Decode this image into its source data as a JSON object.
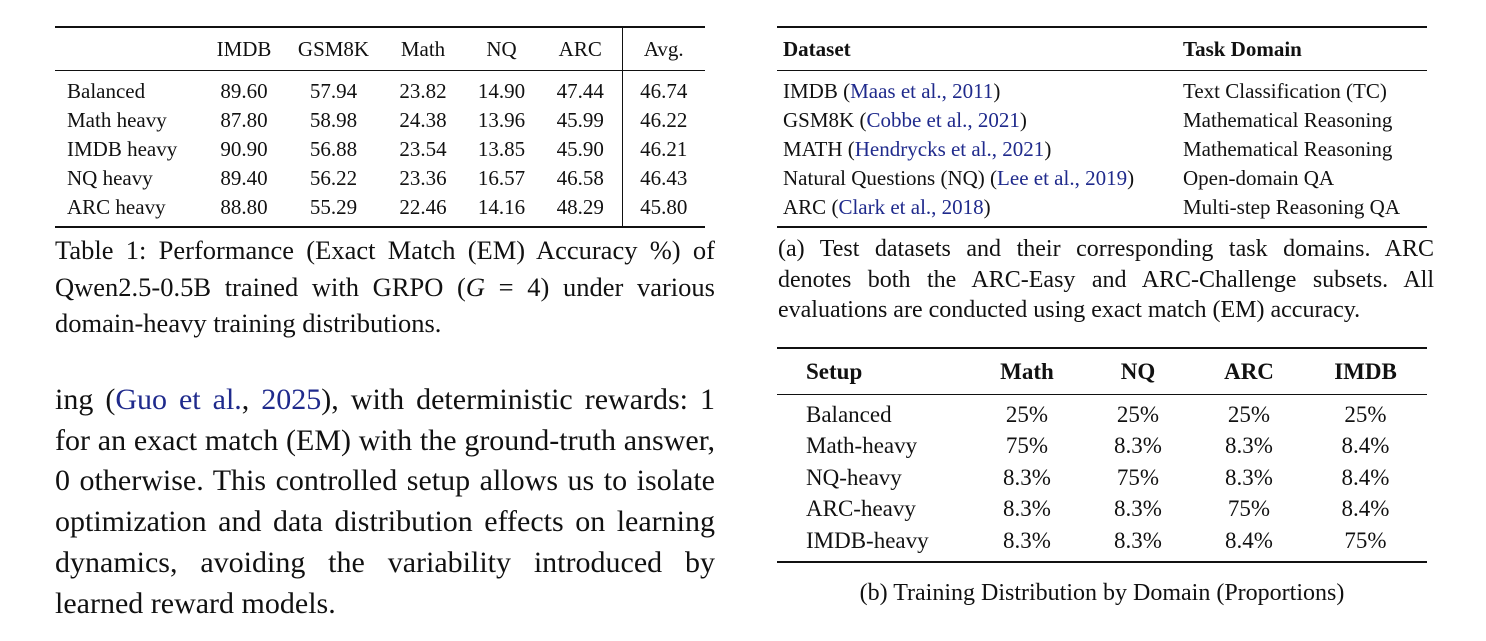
{
  "table1": {
    "headers": [
      "",
      "IMDB",
      "GSM8K",
      "Math",
      "NQ",
      "ARC",
      "Avg."
    ],
    "rows": [
      {
        "label": "Balanced",
        "cells": [
          "89.60",
          "57.94",
          "23.82",
          "14.90",
          "47.44",
          "46.74"
        ]
      },
      {
        "label": "Math heavy",
        "cells": [
          "87.80",
          "58.98",
          "24.38",
          "13.96",
          "45.99",
          "46.22"
        ]
      },
      {
        "label": "IMDB heavy",
        "cells": [
          "90.90",
          "56.88",
          "23.54",
          "13.85",
          "45.90",
          "46.21"
        ]
      },
      {
        "label": "NQ heavy",
        "cells": [
          "89.40",
          "56.22",
          "23.36",
          "16.57",
          "46.58",
          "46.43"
        ]
      },
      {
        "label": "ARC heavy",
        "cells": [
          "88.80",
          "55.29",
          "22.46",
          "14.16",
          "48.29",
          "45.80"
        ]
      }
    ],
    "caption_pre": "Table 1: Performance (Exact Match (EM) Accuracy %) of Qwen2.5-0.5B trained with GRPO (",
    "caption_math_var": "G",
    "caption_math_rest": " = 4",
    "caption_post": ") under various domain-heavy training distributions."
  },
  "body": {
    "pre": "ing (",
    "cite_author": "Guo et al.",
    "cite_sep": ", ",
    "cite_year": "2025",
    "post": "), with deterministic rewards: 1 for an exact match (EM) with the ground-truth answer, 0 otherwise. This controlled setup allows us to isolate optimization and data distribution effects on learning dynamics, avoiding the variability introduced by learned reward models."
  },
  "table_a": {
    "headers": [
      "Dataset",
      "Task Domain"
    ],
    "rows": [
      {
        "name": "IMDB",
        "cite": "Maas et al., 2011",
        "domain": "Text Classification (TC)"
      },
      {
        "name": "GSM8K",
        "cite": "Cobbe et al., 2021",
        "domain": "Mathematical Reasoning"
      },
      {
        "name": "MATH",
        "cite": "Hendrycks et al., 2021",
        "domain": "Mathematical Reasoning"
      },
      {
        "name": "Natural Questions (NQ)",
        "cite": "Lee et al., 2019",
        "domain": "Open-domain QA"
      },
      {
        "name": "ARC",
        "cite": "Clark et al., 2018",
        "domain": "Multi-step Reasoning QA"
      }
    ],
    "caption": "(a) Test datasets and their corresponding task domains. ARC denotes both the ARC-Easy and ARC-Challenge subsets. All evaluations are conducted using exact match (EM) accuracy."
  },
  "table_b": {
    "headers": [
      "Setup",
      "Math",
      "NQ",
      "ARC",
      "IMDB"
    ],
    "rows": [
      {
        "label": "Balanced",
        "cells": [
          "25%",
          "25%",
          "25%",
          "25%"
        ]
      },
      {
        "label": "Math-heavy",
        "cells": [
          "75%",
          "8.3%",
          "8.3%",
          "8.4%"
        ]
      },
      {
        "label": "NQ-heavy",
        "cells": [
          "8.3%",
          "75%",
          "8.3%",
          "8.4%"
        ]
      },
      {
        "label": "ARC-heavy",
        "cells": [
          "8.3%",
          "8.3%",
          "75%",
          "8.4%"
        ]
      },
      {
        "label": "IMDB-heavy",
        "cells": [
          "8.3%",
          "8.3%",
          "8.4%",
          "75%"
        ]
      }
    ],
    "caption": "(b) Training Distribution by Domain (Proportions)"
  },
  "colors": {
    "citation": "#1f2a8c",
    "text": "#111111"
  }
}
